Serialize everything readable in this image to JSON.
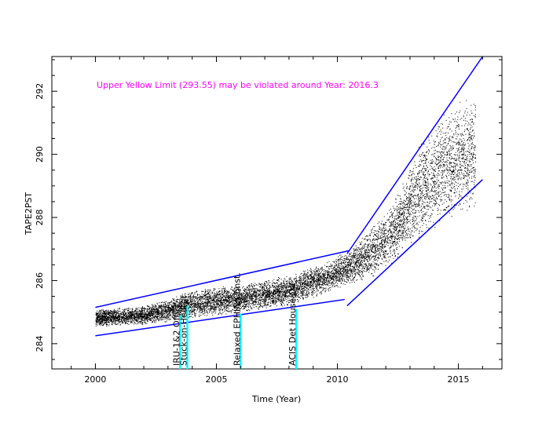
{
  "chart_data": {
    "type": "scatter",
    "xlabel": "Time (Year)",
    "ylabel": "TAPE2PST",
    "xlim": [
      1998.2,
      2016.8
    ],
    "ylim": [
      283.2,
      293.1
    ],
    "xticks": [
      2000,
      2005,
      2010,
      2015
    ],
    "yticks": [
      284,
      286,
      288,
      290,
      292
    ],
    "grid": false,
    "annotation": {
      "text": "Upper Yellow  Limit (293.55) may be violated around Year: 2016.3",
      "color": "#ff00ff",
      "x": 2000.0,
      "y": 292.2
    },
    "point_color": "#000000",
    "line_color": "#0000ff",
    "event_color": "#00ffff",
    "envelope": [
      {
        "x": 2000.0,
        "y_low": 284.55,
        "y_high": 285.1
      },
      {
        "x": 2002.0,
        "y_low": 284.6,
        "y_high": 285.2
      },
      {
        "x": 2004.0,
        "y_low": 284.8,
        "y_high": 285.7
      },
      {
        "x": 2006.0,
        "y_low": 285.0,
        "y_high": 285.9
      },
      {
        "x": 2008.0,
        "y_low": 285.2,
        "y_high": 286.2
      },
      {
        "x": 2009.5,
        "y_low": 285.6,
        "y_high": 286.6
      },
      {
        "x": 2010.5,
        "y_low": 285.9,
        "y_high": 287.0
      },
      {
        "x": 2011.5,
        "y_low": 286.1,
        "y_high": 287.8
      },
      {
        "x": 2012.5,
        "y_low": 286.7,
        "y_high": 288.8
      },
      {
        "x": 2013.5,
        "y_low": 287.4,
        "y_high": 290.5
      },
      {
        "x": 2014.5,
        "y_low": 287.9,
        "y_high": 291.5
      },
      {
        "x": 2015.7,
        "y_low": 288.2,
        "y_high": 291.9
      }
    ],
    "trend_lines": [
      {
        "name": "",
        "x": [
          2000.0,
          2010.5
        ],
        "y": [
          285.15,
          286.95
        ]
      },
      {
        "name": "",
        "x": [
          2000.0,
          2010.3
        ],
        "y": [
          284.25,
          285.4
        ]
      },
      {
        "name": "",
        "x": [
          2010.4,
          2016.0
        ],
        "y": [
          286.85,
          293.1
        ]
      },
      {
        "name": "",
        "x": [
          2010.4,
          2016.0
        ],
        "y": [
          285.2,
          289.2
        ]
      }
    ],
    "events": [
      {
        "x": 2003.5,
        "y_top": 284.9,
        "label": "IRU-1&2 Off"
      },
      {
        "x": 2003.8,
        "y_top": 285.2,
        "label": "Stuck-on-Heater"
      },
      {
        "x": 2006.0,
        "y_top": 284.95,
        "label": "Relaxed EPHIN Const."
      },
      {
        "x": 2008.3,
        "y_top": 285.1,
        "label": "ACIS Det House Off"
      }
    ]
  }
}
